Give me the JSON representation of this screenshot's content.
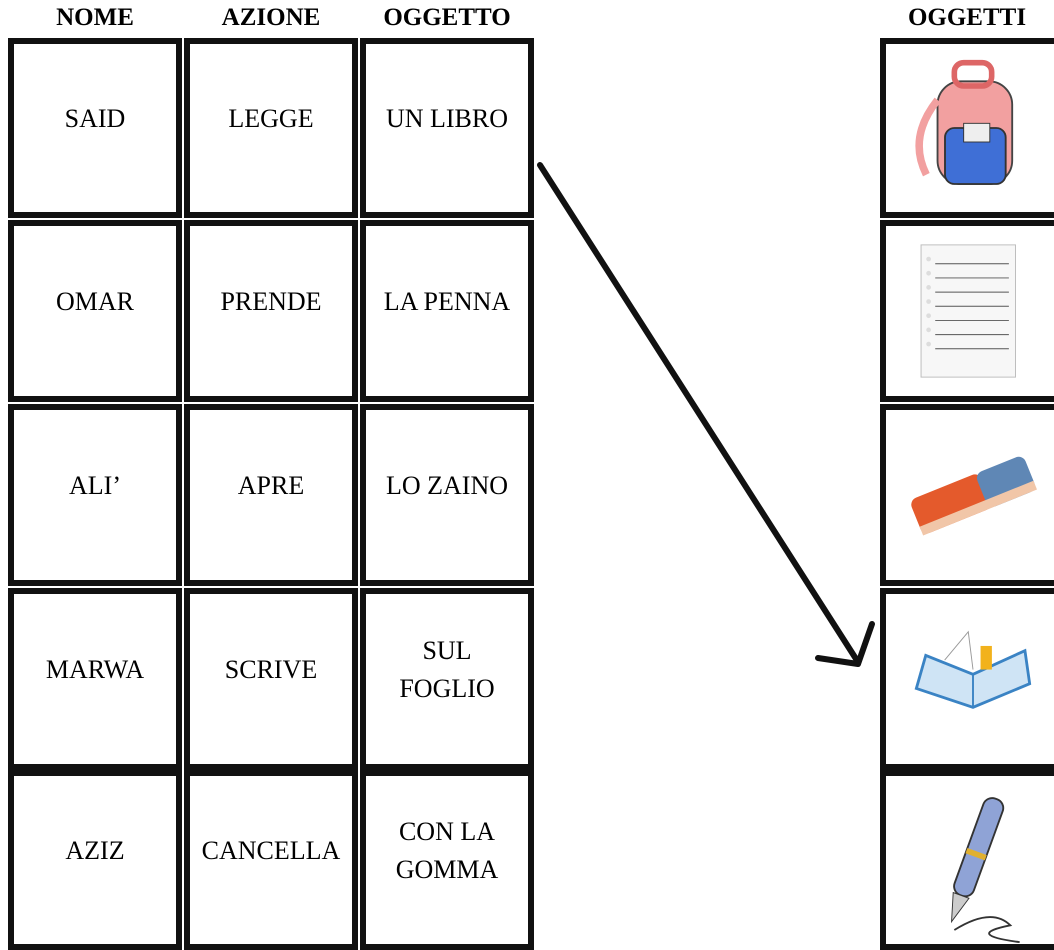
{
  "headers": [
    "NOME",
    "AZIONE",
    "OGGETTO"
  ],
  "objects_header": "OGGETTI",
  "rows": [
    [
      "SAID",
      "LEGGE",
      "UN LIBRO"
    ],
    [
      "OMAR",
      "PRENDE",
      "LA PENNA"
    ],
    [
      "ALI’",
      "APRE",
      "LO ZAINO"
    ],
    [
      "MARWA",
      "SCRIVE",
      "SUL\nFOGLIO"
    ],
    [
      "AZIZ",
      "CANCELLA",
      "CON LA\nGOMMA"
    ]
  ]
}
